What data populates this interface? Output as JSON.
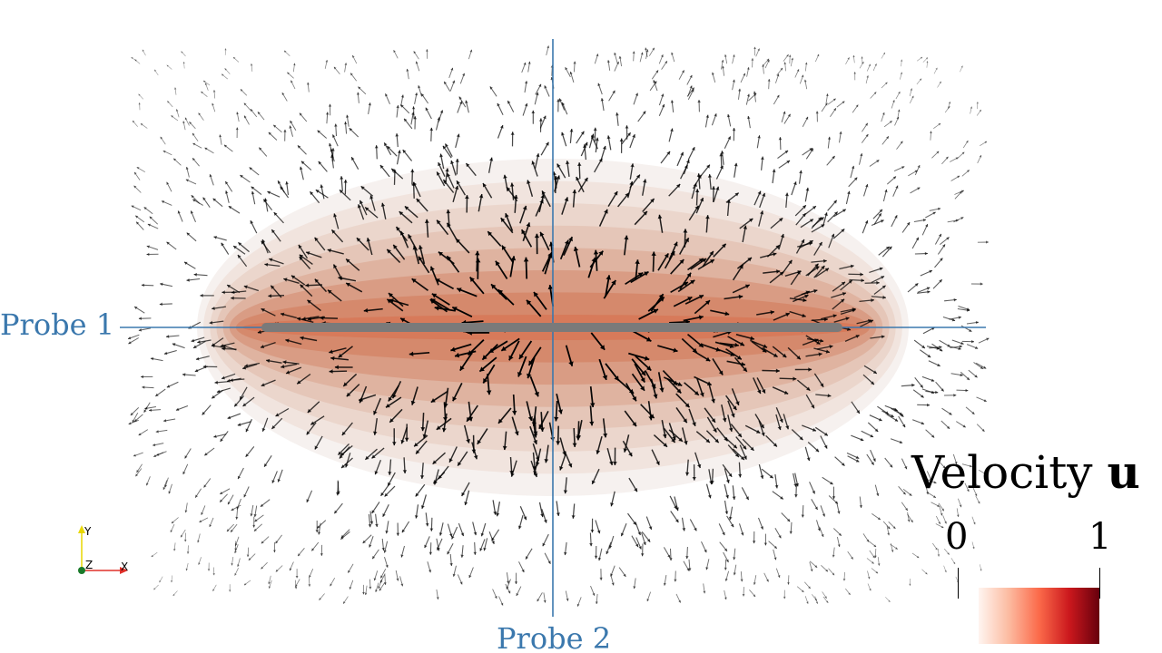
{
  "probes": {
    "probe1": {
      "label": "Probe 1"
    },
    "probe2": {
      "label": "Probe 2"
    },
    "color": "#3b78ad"
  },
  "colorbar": {
    "title_text": "Velocity ",
    "title_symbol": "u",
    "min_label": "0",
    "max_label": "1",
    "min": 0,
    "max": 1,
    "colormap": [
      "#fff5f0",
      "#fcbba1",
      "#fb6a4a",
      "#cb181d",
      "#67000d"
    ]
  },
  "axes_widget": {
    "x_label": "X",
    "y_label": "Y",
    "z_label": "Z",
    "x_color": "#e0302a",
    "y_color": "#e8d700",
    "z_color": "#1a7a2a"
  },
  "field": {
    "contour_levels": [
      0.02,
      0.06,
      0.1,
      0.14,
      0.18,
      0.22,
      0.26,
      0.3
    ],
    "contour_colors": [
      "#f6f1ef",
      "#f1e4de",
      "#ebd6cc",
      "#e5c6b8",
      "#dfb3a0",
      "#d99c84",
      "#d5896c",
      "#d77a5a"
    ],
    "rod_color": "#7a7a7a",
    "arrow_color": "#000000"
  }
}
